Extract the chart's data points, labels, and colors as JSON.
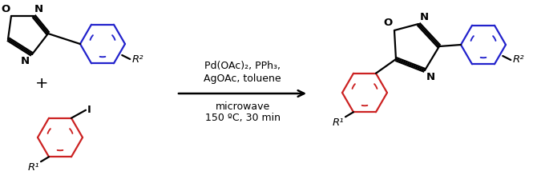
{
  "bg_color": "#ffffff",
  "black": "#000000",
  "blue": "#2222cc",
  "red": "#cc2222",
  "figsize": [
    6.7,
    2.34
  ],
  "dpi": 100,
  "arrow_text_line1": "Pd(OAc)₂, PPh₃,",
  "arrow_text_line2": "AgOAc, toluene",
  "arrow_text_line3": "microwave",
  "arrow_text_line4": "150 ºC, 30 min",
  "plus_sign": "+",
  "r1_label": "R¹",
  "r2_label": "R²",
  "I_label": "I",
  "N_label": "N",
  "O_label": "O"
}
